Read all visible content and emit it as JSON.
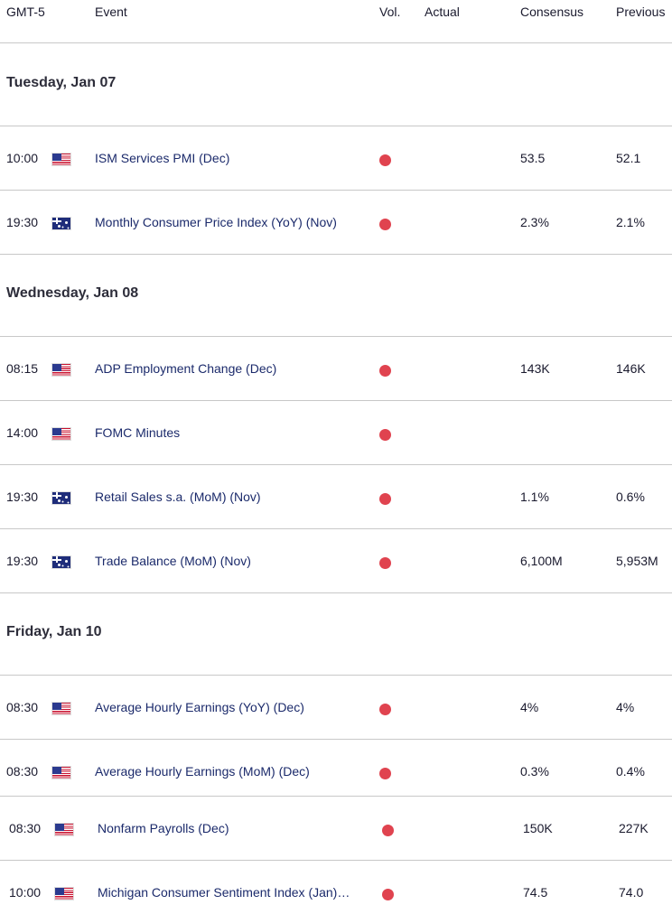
{
  "header": {
    "timezone": "GMT-5",
    "event": "Event",
    "vol": "Vol.",
    "actual": "Actual",
    "consensus": "Consensus",
    "previous": "Previous"
  },
  "colors": {
    "volatility_dot": "#e0434f",
    "event_text": "#1b2a6b"
  },
  "days": [
    {
      "label": "Tuesday, Jan 07",
      "events": [
        {
          "time": "10:00",
          "country": "us-flag-icon",
          "name": "ISM Services PMI (Dec)",
          "actual": "",
          "consensus": "53.5",
          "previous": "52.1"
        },
        {
          "time": "19:30",
          "country": "au-flag-icon",
          "name": "Monthly Consumer Price Index (YoY) (Nov)",
          "actual": "",
          "consensus": "2.3%",
          "previous": "2.1%"
        }
      ]
    },
    {
      "label": "Wednesday, Jan 08",
      "events": [
        {
          "time": "08:15",
          "country": "us-flag-icon",
          "name": "ADP Employment Change (Dec)",
          "actual": "",
          "consensus": "143K",
          "previous": "146K"
        },
        {
          "time": "14:00",
          "country": "us-flag-icon",
          "name": "FOMC Minutes",
          "actual": "",
          "consensus": "",
          "previous": ""
        },
        {
          "time": "19:30",
          "country": "au-flag-icon",
          "name": "Retail Sales s.a. (MoM) (Nov)",
          "actual": "",
          "consensus": "1.1%",
          "previous": "0.6%"
        },
        {
          "time": "19:30",
          "country": "au-flag-icon",
          "name": "Trade Balance (MoM) (Nov)",
          "actual": "",
          "consensus": "6,100M",
          "previous": "5,953M"
        }
      ]
    },
    {
      "label": "Friday, Jan 10",
      "events": [
        {
          "time": "08:30",
          "country": "us-flag-icon",
          "name": "Average Hourly Earnings (YoY) (Dec)",
          "actual": "",
          "consensus": "4%",
          "previous": "4%"
        },
        {
          "time": "08:30",
          "country": "us-flag-icon",
          "name": "Average Hourly Earnings (MoM) (Dec)",
          "actual": "",
          "consensus": "0.3%",
          "previous": "0.4%"
        },
        {
          "time": "08:30",
          "country": "us-flag-icon",
          "name": "Nonfarm Payrolls (Dec)",
          "actual": "",
          "consensus": "150K",
          "previous": "227K"
        },
        {
          "time": "10:00",
          "country": "us-flag-icon",
          "name": "Michigan Consumer Sentiment Index (Jan)…",
          "actual": "",
          "consensus": "74.5",
          "previous": "74.0"
        }
      ]
    }
  ]
}
